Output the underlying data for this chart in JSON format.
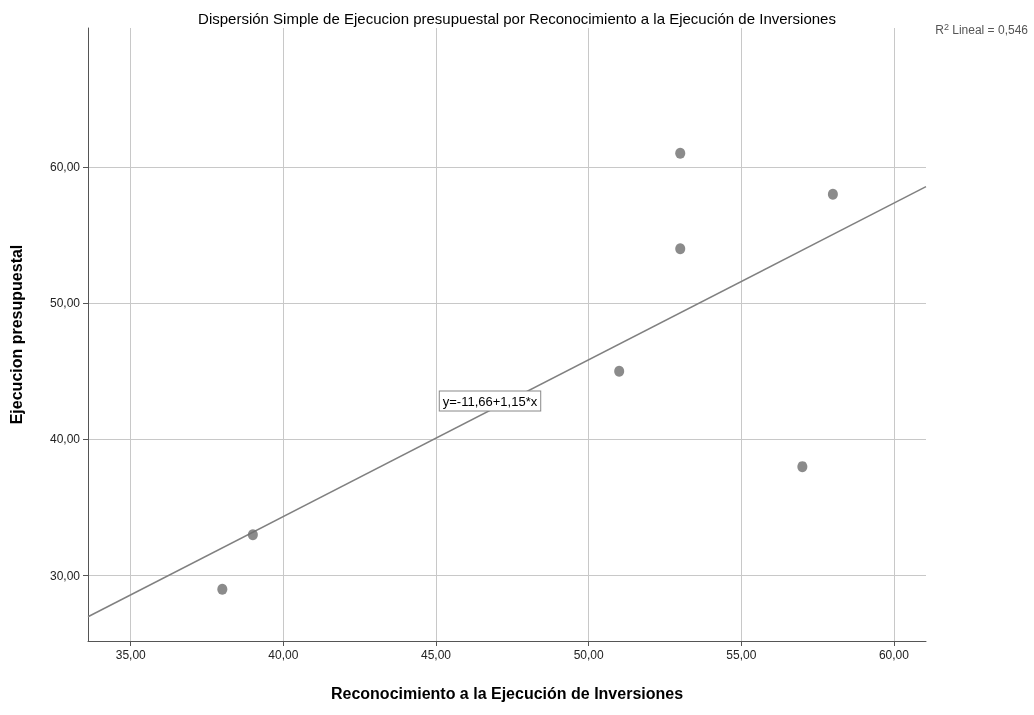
{
  "chart_data": {
    "type": "scatter",
    "title": "Dispersión Simple de Ejecucion presupuestal por Reconocimiento a la Ejecución de Inversiones",
    "xlabel": "Reconocimiento a la Ejecución de Inversiones",
    "ylabel": "Ejecucion presupuestal",
    "series": [
      {
        "color": "#6e6e6e",
        "x": [
          38,
          39,
          51,
          53,
          53,
          57,
          58
        ],
        "values": [
          29,
          33,
          45,
          61,
          54,
          38,
          58
        ]
      },
      {
        "type": "line",
        "color": "#808080",
        "marker": "none",
        "x": [
          33.6,
          61.05
        ],
        "values": [
          26.98,
          58.55
        ]
      }
    ],
    "xlim": [
      33.6,
      61.05
    ],
    "ylim": [
      25.2,
      70.2
    ],
    "xticks": [
      {
        "value": 35,
        "label": "35,00"
      },
      {
        "value": 40,
        "label": "40,00"
      },
      {
        "value": 45,
        "label": "45,00"
      },
      {
        "value": 50,
        "label": "50,00"
      },
      {
        "value": 55,
        "label": "55,00"
      },
      {
        "value": 60,
        "label": "60,00"
      }
    ],
    "yticks": [
      {
        "value": 30,
        "label": "30,00"
      },
      {
        "value": 40,
        "label": "40,00"
      },
      {
        "value": 50,
        "label": "50,00"
      },
      {
        "value": 60,
        "label": "60,00"
      }
    ],
    "annotations": [
      "y=-11,66+1,15*x",
      "R$^{2}$ Lineal = 0,546"
    ],
    "grid": true,
    "marker": "circle"
  }
}
